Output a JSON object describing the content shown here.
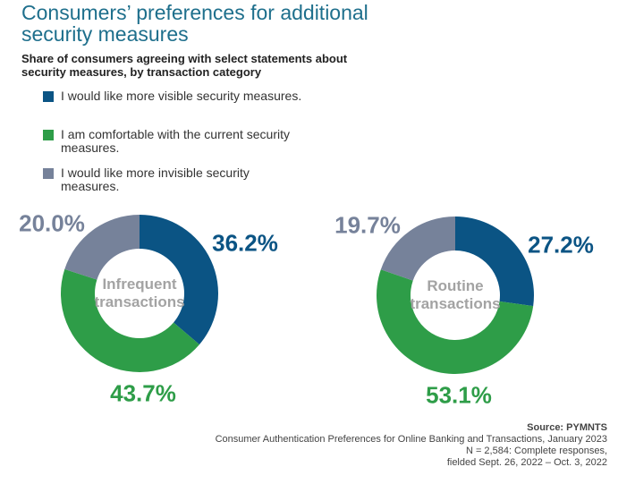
{
  "title": "Consumers’ preferences for additional security measures",
  "subtitle": "Share of consumers agreeing with select statements about security measures, by transaction category",
  "legend": {
    "labels": [
      "I would like more visible security measures.",
      "I am comfortable with the current security measures.",
      "I would like more invisible security measures."
    ],
    "colors": [
      "#0b5484",
      "#2e9d48",
      "#76829a"
    ]
  },
  "chart_data": [
    {
      "type": "donut",
      "center_label": "Infrequent transactions",
      "values": [
        36.2,
        43.7,
        20.0
      ],
      "value_labels": [
        "36.2%",
        "43.7%",
        "20.0%"
      ]
    },
    {
      "type": "donut",
      "center_label": "Routine transactions",
      "values": [
        27.2,
        53.1,
        19.7
      ],
      "value_labels": [
        "27.2%",
        "53.1%",
        "19.7%"
      ]
    }
  ],
  "source": {
    "heading": "Source: PYMNTS",
    "lines": [
      "Consumer Authentication Preferences for Online Banking and Transactions, January 2023",
      "N = 2,584: Complete responses,",
      "fielded Sept. 26, 2022 – Oct. 3, 2022"
    ]
  }
}
